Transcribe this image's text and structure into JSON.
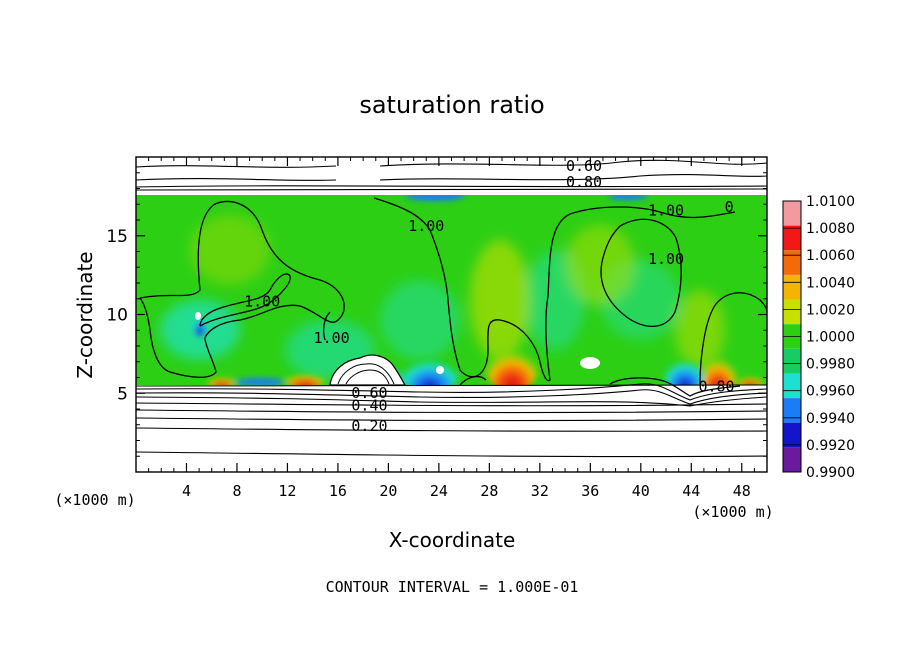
{
  "chart_data": {
    "type": "heatmap",
    "title": "saturation ratio",
    "xlabel": "X-coordinate",
    "ylabel": "Z-coordinate",
    "x_unit": "(×1000 m)",
    "x_unit_right": "(×1000 m)",
    "xlim": [
      0,
      50
    ],
    "ylim": [
      0,
      20
    ],
    "x_ticks": [
      4,
      8,
      12,
      16,
      20,
      24,
      28,
      32,
      36,
      40,
      44,
      48
    ],
    "y_ticks": [
      5,
      10,
      15
    ],
    "footer": "CONTOUR INTERVAL = 1.000E-01",
    "colorbar": {
      "values": [
        1.01,
        1.008,
        1.006,
        1.004,
        1.002,
        1.0,
        0.998,
        0.996,
        0.994,
        0.992,
        0.99
      ],
      "labels": [
        "1.0100",
        "1.0080",
        "1.0060",
        "1.0040",
        "1.0020",
        "1.0000",
        "0.9980",
        "0.9960",
        "0.9940",
        "0.9920",
        "0.9900"
      ],
      "colors": [
        "#f29aa0",
        "#f21818",
        "#f26a0a",
        "#f5b400",
        "#c8e000",
        "#2ccf14",
        "#18cc64",
        "#1ee0d0",
        "#1a7df5",
        "#1414cc",
        "#6a1a9e"
      ]
    },
    "contour_labels": [
      {
        "text": "0.60",
        "x": 35.5,
        "y": 19.1
      },
      {
        "text": "0.80",
        "x": 35.5,
        "y": 18.1
      },
      {
        "text": "1.00",
        "x": 23.0,
        "y": 15.3
      },
      {
        "text": "1.00",
        "x": 42.0,
        "y": 16.3
      },
      {
        "text": "0",
        "x": 47.0,
        "y": 16.5
      },
      {
        "text": "1.00",
        "x": 42.0,
        "y": 13.2
      },
      {
        "text": "1.00",
        "x": 10.0,
        "y": 10.5
      },
      {
        "text": "1.00",
        "x": 15.5,
        "y": 8.2
      },
      {
        "text": "0.80",
        "x": 46.0,
        "y": 5.1
      },
      {
        "text": "0.60",
        "x": 18.5,
        "y": 4.7
      },
      {
        "text": "0.40",
        "x": 18.5,
        "y": 3.9
      },
      {
        "text": "0.20",
        "x": 18.5,
        "y": 2.6
      }
    ],
    "grid": false
  }
}
